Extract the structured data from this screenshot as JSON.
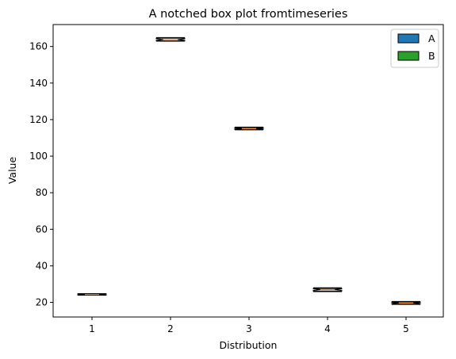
{
  "chart_data": {
    "type": "box",
    "title": "A notched box plot fromtimeseries",
    "xlabel": "Distribution",
    "ylabel": "Value",
    "ylim": [
      12,
      172
    ],
    "yticks": [
      20,
      40,
      60,
      80,
      100,
      120,
      140,
      160
    ],
    "categories": [
      "1",
      "2",
      "3",
      "4",
      "5"
    ],
    "boxes": [
      {
        "category": "1",
        "whislo": 23.9,
        "q1": 24.0,
        "med": 24.3,
        "q3": 24.6,
        "whishi": 24.8
      },
      {
        "category": "2",
        "whislo": 162.9,
        "q1": 163.1,
        "med": 163.8,
        "q3": 164.6,
        "whishi": 164.9
      },
      {
        "category": "3",
        "whislo": 114.4,
        "q1": 114.6,
        "med": 115.1,
        "q3": 115.6,
        "whishi": 115.9
      },
      {
        "category": "4",
        "whislo": 25.9,
        "q1": 26.2,
        "med": 27.0,
        "q3": 27.6,
        "whishi": 28.0
      },
      {
        "category": "5",
        "whislo": 18.9,
        "q1": 19.1,
        "med": 19.7,
        "q3": 20.2,
        "whishi": 20.5
      }
    ],
    "legend": {
      "position": "top-right",
      "entries": [
        {
          "label": "A",
          "color": "#1f77b4"
        },
        {
          "label": "B",
          "color": "#2ca02c"
        }
      ]
    },
    "median_color": "#ff7f0e",
    "grid": false
  }
}
